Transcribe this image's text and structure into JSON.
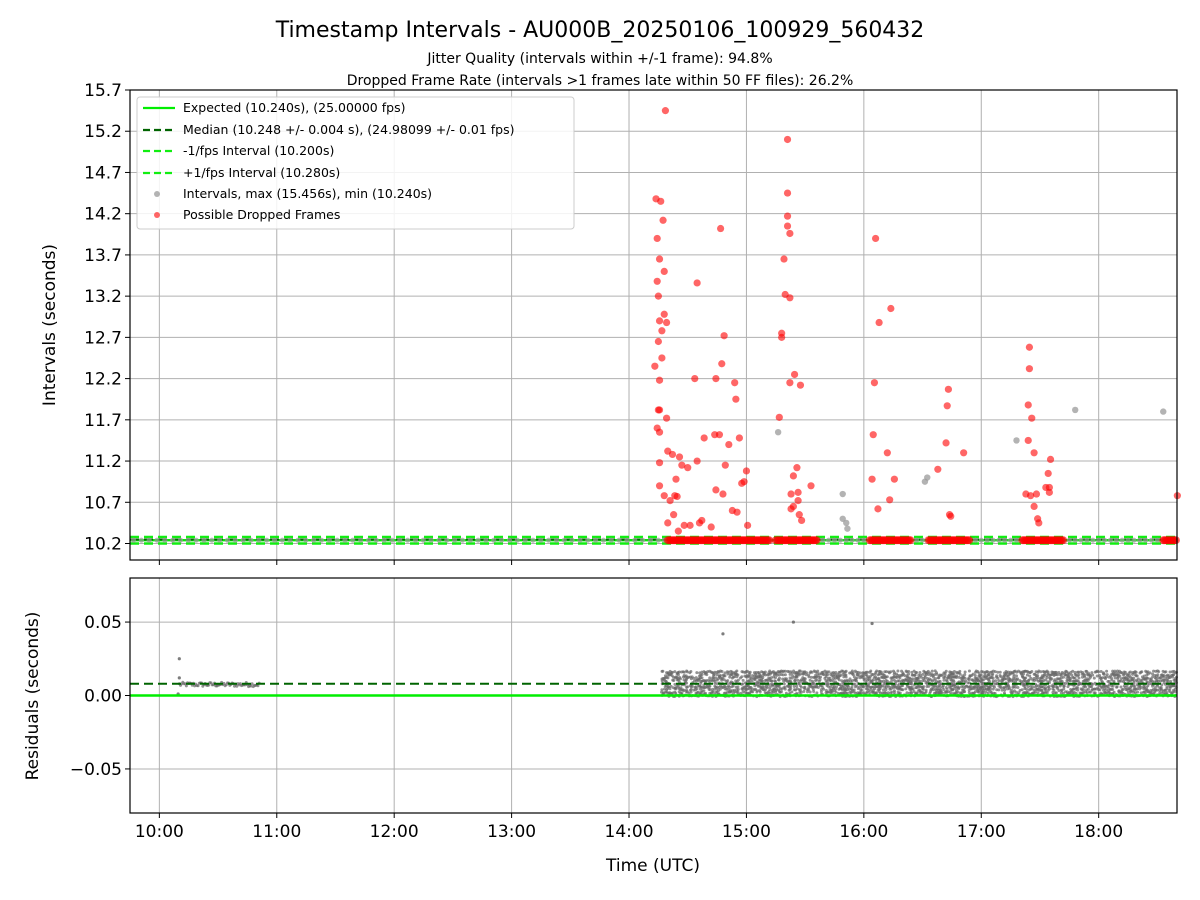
{
  "title": "Timestamp Intervals - AU000B_20250106_100929_560432",
  "subtitle_lines": [
    "Jitter Quality (intervals within +/-1 frame): 94.8%",
    "Dropped Frame Rate (intervals >1 frames late within 50 FF files): 26.2%"
  ],
  "colors": {
    "expected": "#00ee00",
    "median": "#006400",
    "fps_band": "#11ee11",
    "intervals": "#999999",
    "dropped": "#ff0000",
    "residuals": "#666666",
    "grid": "#b0b0b0"
  },
  "chart_data": [
    {
      "type": "scatter",
      "ylabel": "Intervals (seconds)",
      "xlim_hours": [
        9.75,
        18.667
      ],
      "ylim": [
        10.0,
        15.7
      ],
      "yticks": [
        10.2,
        10.7,
        11.2,
        11.7,
        12.2,
        12.7,
        13.2,
        13.7,
        14.2,
        14.7,
        15.2,
        15.7
      ],
      "grid": true,
      "legend_placement": "top-left",
      "legend": [
        "Expected (10.240s), (25.00000 fps)",
        "Median (10.248 +/- 0.004 s), (24.98099 +/- 0.01 fps)",
        "-1/fps Interval (10.200s)",
        "+1/fps Interval (10.280s)",
        "Intervals, max (15.456s), min (10.240s)",
        "Possible Dropped Frames"
      ],
      "lines": {
        "expected": 10.24,
        "median": 10.248,
        "minus_fps": 10.2,
        "plus_fps": 10.28
      },
      "baseline_segments_hours": [
        [
          14.33,
          15.2
        ],
        [
          15.25,
          15.6
        ],
        [
          16.05,
          16.4
        ],
        [
          16.55,
          16.9
        ],
        [
          17.35,
          17.7
        ],
        [
          18.55,
          18.667
        ]
      ],
      "gray_outliers": [
        [
          15.27,
          11.55
        ],
        [
          15.82,
          10.8
        ],
        [
          15.82,
          10.5
        ],
        [
          15.85,
          10.45
        ],
        [
          15.86,
          10.38
        ],
        [
          16.52,
          10.95
        ],
        [
          16.54,
          11.0
        ],
        [
          17.3,
          11.45
        ],
        [
          17.8,
          11.82
        ],
        [
          18.55,
          11.8
        ]
      ],
      "dropped_frames": [
        [
          14.22,
          12.35
        ],
        [
          14.23,
          14.38
        ],
        [
          14.24,
          13.9
        ],
        [
          14.24,
          13.38
        ],
        [
          14.25,
          13.2
        ],
        [
          14.25,
          12.65
        ],
        [
          14.25,
          11.82
        ],
        [
          14.24,
          11.6
        ],
        [
          14.26,
          13.65
        ],
        [
          14.26,
          12.9
        ],
        [
          14.26,
          12.18
        ],
        [
          14.26,
          11.82
        ],
        [
          14.26,
          11.55
        ],
        [
          14.26,
          11.18
        ],
        [
          14.26,
          10.9
        ],
        [
          14.27,
          14.35
        ],
        [
          14.28,
          12.78
        ],
        [
          14.28,
          12.45
        ],
        [
          14.29,
          14.12
        ],
        [
          14.3,
          13.5
        ],
        [
          14.3,
          12.98
        ],
        [
          14.3,
          10.78
        ],
        [
          14.31,
          15.45
        ],
        [
          14.32,
          12.88
        ],
        [
          14.32,
          11.72
        ],
        [
          14.33,
          11.32
        ],
        [
          14.33,
          10.45
        ],
        [
          14.35,
          10.72
        ],
        [
          14.37,
          11.28
        ],
        [
          14.38,
          10.55
        ],
        [
          14.39,
          10.78
        ],
        [
          14.4,
          10.98
        ],
        [
          14.41,
          10.77
        ],
        [
          14.42,
          10.35
        ],
        [
          14.43,
          11.25
        ],
        [
          14.45,
          11.15
        ],
        [
          14.47,
          10.42
        ],
        [
          14.5,
          11.12
        ],
        [
          14.52,
          10.42
        ],
        [
          14.56,
          12.2
        ],
        [
          14.58,
          13.36
        ],
        [
          14.58,
          11.2
        ],
        [
          14.6,
          10.45
        ],
        [
          14.62,
          10.48
        ],
        [
          14.64,
          11.48
        ],
        [
          14.7,
          10.4
        ],
        [
          14.73,
          11.52
        ],
        [
          14.74,
          12.2
        ],
        [
          14.74,
          10.85
        ],
        [
          14.77,
          11.52
        ],
        [
          14.78,
          14.02
        ],
        [
          14.79,
          12.38
        ],
        [
          14.8,
          10.8
        ],
        [
          14.81,
          12.72
        ],
        [
          14.82,
          11.15
        ],
        [
          14.85,
          11.4
        ],
        [
          14.88,
          10.6
        ],
        [
          14.9,
          12.15
        ],
        [
          14.91,
          11.95
        ],
        [
          14.92,
          10.58
        ],
        [
          14.94,
          11.48
        ],
        [
          14.96,
          10.93
        ],
        [
          14.98,
          10.95
        ],
        [
          15.0,
          11.08
        ],
        [
          15.01,
          10.42
        ],
        [
          15.28,
          11.73
        ],
        [
          15.3,
          12.75
        ],
        [
          15.3,
          12.7
        ],
        [
          15.32,
          13.65
        ],
        [
          15.33,
          13.22
        ],
        [
          15.35,
          15.1
        ],
        [
          15.35,
          14.45
        ],
        [
          15.35,
          14.17
        ],
        [
          15.35,
          14.05
        ],
        [
          15.37,
          13.96
        ],
        [
          15.37,
          13.18
        ],
        [
          15.37,
          12.15
        ],
        [
          15.38,
          10.8
        ],
        [
          15.38,
          10.62
        ],
        [
          15.4,
          11.02
        ],
        [
          15.4,
          10.65
        ],
        [
          15.41,
          12.25
        ],
        [
          15.43,
          11.12
        ],
        [
          15.44,
          10.82
        ],
        [
          15.44,
          10.72
        ],
        [
          15.45,
          10.55
        ],
        [
          15.46,
          12.12
        ],
        [
          15.47,
          10.48
        ],
        [
          15.55,
          10.9
        ],
        [
          16.07,
          10.98
        ],
        [
          16.08,
          11.52
        ],
        [
          16.09,
          12.15
        ],
        [
          16.1,
          13.9
        ],
        [
          16.12,
          10.62
        ],
        [
          16.13,
          12.88
        ],
        [
          16.2,
          11.3
        ],
        [
          16.22,
          10.73
        ],
        [
          16.23,
          13.05
        ],
        [
          16.26,
          10.98
        ],
        [
          16.63,
          11.1
        ],
        [
          16.7,
          11.42
        ],
        [
          16.71,
          11.87
        ],
        [
          16.72,
          12.07
        ],
        [
          16.73,
          10.55
        ],
        [
          16.74,
          10.53
        ],
        [
          16.85,
          11.3
        ],
        [
          17.38,
          10.8
        ],
        [
          17.4,
          11.88
        ],
        [
          17.4,
          11.45
        ],
        [
          17.41,
          12.58
        ],
        [
          17.41,
          12.32
        ],
        [
          17.42,
          10.78
        ],
        [
          17.43,
          11.72
        ],
        [
          17.45,
          11.3
        ],
        [
          17.45,
          10.65
        ],
        [
          17.47,
          10.8
        ],
        [
          17.48,
          10.5
        ],
        [
          17.49,
          10.45
        ],
        [
          17.55,
          10.88
        ],
        [
          17.57,
          11.05
        ],
        [
          17.58,
          10.88
        ],
        [
          17.58,
          10.82
        ],
        [
          17.59,
          11.22
        ],
        [
          18.67,
          10.78
        ]
      ]
    },
    {
      "type": "scatter",
      "xlabel": "Time (UTC)",
      "ylabel": "Residuals (seconds)",
      "xlim_hours": [
        9.75,
        18.667
      ],
      "ylim": [
        -0.08,
        0.08
      ],
      "yticks": [
        -0.05,
        0.0,
        0.05
      ],
      "ytick_labels": [
        "−0.05",
        "0.00",
        "0.05"
      ],
      "xticks_hours": [
        10,
        11,
        12,
        13,
        14,
        15,
        16,
        17,
        18
      ],
      "xtick_labels": [
        "10:00",
        "11:00",
        "12:00",
        "13:00",
        "14:00",
        "15:00",
        "16:00",
        "17:00",
        "18:00"
      ],
      "grid": true,
      "lines": {
        "zero": 0.0,
        "median_residual": 0.008
      },
      "early_cluster": {
        "x_range_hours": [
          10.17,
          10.85
        ],
        "y_range": [
          0.006,
          0.009
        ]
      },
      "dense_band": {
        "x_range_hours": [
          14.28,
          18.667
        ],
        "y_range": [
          0.0,
          0.018
        ]
      },
      "outliers": [
        [
          10.17,
          0.025
        ],
        [
          10.17,
          0.012
        ],
        [
          10.16,
          0.001
        ],
        [
          14.8,
          0.042
        ],
        [
          15.4,
          0.05
        ],
        [
          16.07,
          0.049
        ]
      ]
    }
  ]
}
